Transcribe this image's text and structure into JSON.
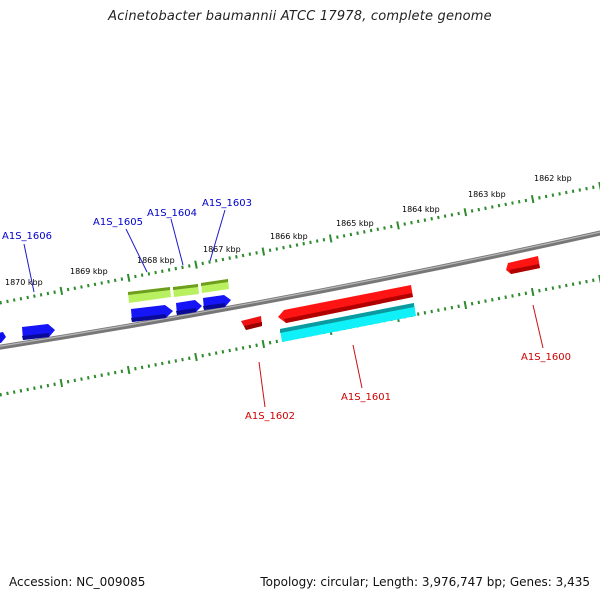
{
  "title": "Acinetobacter baumannii ATCC 17978, complete genome",
  "footer": {
    "accession": "Accession: NC_009085",
    "summary": "Topology: circular; Length: 3,976,747 bp; Genes: 3,435"
  },
  "colors": {
    "backbone": "#8a8a8a",
    "ticks": "#2e8b2e",
    "blue_gene": "#1a1aff",
    "red_gene": "#ff1a1a",
    "green_gene": "#9acd32",
    "cyan_gene": "#00e5ee",
    "blue_label": "#0000cc",
    "red_label": "#cc0000"
  },
  "kbp_labels": [
    "1862 kbp",
    "1863 kbp",
    "1864 kbp",
    "1865 kbp",
    "1866 kbp",
    "1867 kbp",
    "1868 kbp",
    "1869 kbp",
    "1870 kbp"
  ],
  "gene_labels": {
    "A1S_1606": "A1S_1606",
    "A1S_1605": "A1S_1605",
    "A1S_1604": "A1S_1604",
    "A1S_1603": "A1S_1603",
    "A1S_1602": "A1S_1602",
    "A1S_1601": "A1S_1601",
    "A1S_1600": "A1S_1600"
  }
}
